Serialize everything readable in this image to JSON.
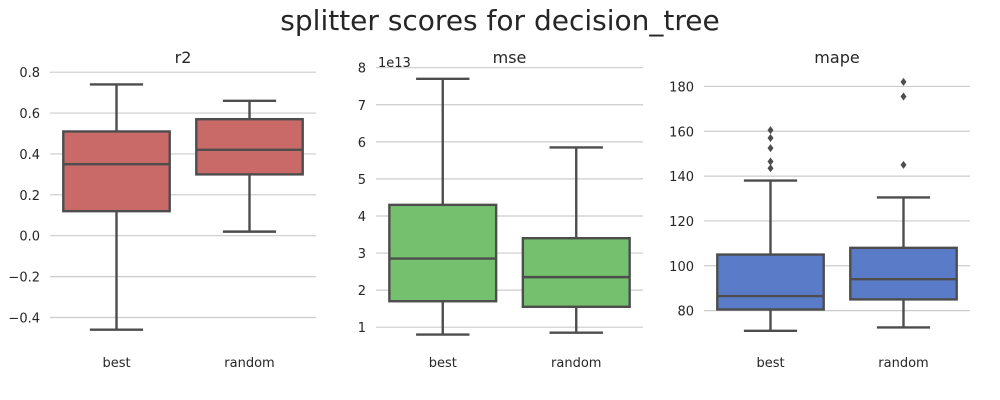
{
  "figure": {
    "title": "splitter scores for decision_tree"
  },
  "chart_data": [
    {
      "type": "box",
      "title": "r2",
      "color": "#c96a69",
      "categories": [
        "best",
        "random"
      ],
      "ylim": [
        -0.52,
        0.84
      ],
      "yticks": [
        -0.4,
        -0.2,
        0.0,
        0.2,
        0.4,
        0.6,
        0.8
      ],
      "ytick_labels": [
        "−0.4",
        "−0.2",
        "0.0",
        "0.2",
        "0.4",
        "0.6",
        "0.8"
      ],
      "offset_label": "",
      "boxes": [
        {
          "category": "best",
          "whisker_low": -0.46,
          "q1": 0.12,
          "median": 0.35,
          "q3": 0.51,
          "whisker_high": 0.74,
          "outliers": []
        },
        {
          "category": "random",
          "whisker_low": 0.02,
          "q1": 0.3,
          "median": 0.42,
          "q3": 0.57,
          "whisker_high": 0.66,
          "outliers": []
        }
      ]
    },
    {
      "type": "box",
      "title": "mse",
      "color": "#74c06e",
      "categories": [
        "best",
        "random"
      ],
      "ylim": [
        0.6,
        8.1
      ],
      "yticks": [
        1,
        2,
        3,
        4,
        5,
        6,
        7,
        8
      ],
      "ytick_labels": [
        "1",
        "2",
        "3",
        "4",
        "5",
        "6",
        "7",
        "8"
      ],
      "offset_label": "1e13",
      "boxes": [
        {
          "category": "best",
          "whisker_low": 0.8,
          "q1": 1.7,
          "median": 2.85,
          "q3": 4.3,
          "whisker_high": 7.7,
          "outliers": []
        },
        {
          "category": "random",
          "whisker_low": 0.85,
          "q1": 1.55,
          "median": 2.35,
          "q3": 3.4,
          "whisker_high": 5.85,
          "outliers": []
        }
      ]
    },
    {
      "type": "box",
      "title": "mape",
      "color": "#5a7cc8",
      "categories": [
        "best",
        "random"
      ],
      "ylim": [
        66,
        190
      ],
      "yticks": [
        80,
        100,
        120,
        140,
        160,
        180
      ],
      "ytick_labels": [
        "80",
        "100",
        "120",
        "140",
        "160",
        "180"
      ],
      "offset_label": "",
      "boxes": [
        {
          "category": "best",
          "whisker_low": 71,
          "q1": 80.5,
          "median": 86.5,
          "q3": 105,
          "whisker_high": 138,
          "outliers": [
            143.5,
            146.5,
            152.5,
            157,
            160.5
          ]
        },
        {
          "category": "random",
          "whisker_low": 72.5,
          "q1": 85,
          "median": 94,
          "q3": 108,
          "whisker_high": 130.5,
          "outliers": [
            145,
            175.5,
            182
          ]
        }
      ]
    }
  ]
}
